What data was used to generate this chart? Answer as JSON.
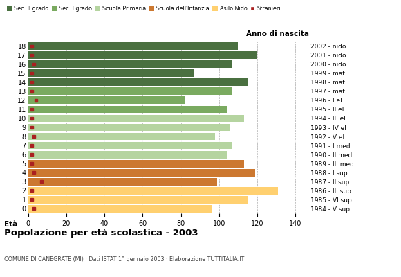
{
  "ages": [
    18,
    17,
    16,
    15,
    14,
    13,
    12,
    11,
    10,
    9,
    8,
    7,
    6,
    5,
    4,
    3,
    2,
    1,
    0
  ],
  "years": [
    "1984 - V sup",
    "1985 - VI sup",
    "1986 - III sup",
    "1987 - II sup",
    "1988 - I sup",
    "1989 - III med",
    "1990 - II med",
    "1991 - I med",
    "1992 - V el",
    "1993 - IV el",
    "1994 - III el",
    "1995 - II el",
    "1996 - I el",
    "1997 - mat",
    "1998 - mat",
    "1999 - mat",
    "2000 - nido",
    "2001 - nido",
    "2002 - nido"
  ],
  "values": [
    110,
    120,
    107,
    87,
    115,
    107,
    82,
    104,
    113,
    106,
    98,
    107,
    104,
    113,
    119,
    99,
    131,
    115,
    96
  ],
  "stranieri": [
    2,
    2,
    3,
    2,
    2,
    2,
    4,
    2,
    2,
    2,
    3,
    2,
    2,
    2,
    3,
    7,
    2,
    2,
    3
  ],
  "bar_colors": {
    "sec2": "#4a7040",
    "sec1": "#7aaa60",
    "primaria": "#b5d4a0",
    "infanzia": "#cc7830",
    "nido": "#ffd070",
    "stranieri": "#aa2020"
  },
  "age_colors": {
    "18": "#4a7040",
    "17": "#4a7040",
    "16": "#4a7040",
    "15": "#4a7040",
    "14": "#4a7040",
    "13": "#7aaa60",
    "12": "#7aaa60",
    "11": "#7aaa60",
    "10": "#b5d4a0",
    "9": "#b5d4a0",
    "8": "#b5d4a0",
    "7": "#b5d4a0",
    "6": "#b5d4a0",
    "5": "#cc7830",
    "4": "#cc7830",
    "3": "#cc7830",
    "2": "#ffd070",
    "1": "#ffd070",
    "0": "#ffd070"
  },
  "legend_labels": [
    "Sec. II grado",
    "Sec. I grado",
    "Scuola Primaria",
    "Scuola dell'Infanzia",
    "Asilo Nido",
    "Stranieri"
  ],
  "legend_colors": [
    "#4a7040",
    "#7aaa60",
    "#b5d4a0",
    "#cc7830",
    "#ffd070",
    "#aa2020"
  ],
  "title": "Popolazione per età scolastica - 2003",
  "subtitle": "COMUNE DI CANEGRATE (MI) · Dati ISTAT 1° gennaio 2003 · Elaborazione TUTTITALIA.IT",
  "xlabel_eta": "Età",
  "xlabel_anno": "Anno di nascita",
  "xlim": [
    0,
    147
  ],
  "xticks": [
    0,
    20,
    40,
    60,
    80,
    100,
    120,
    140
  ],
  "background_color": "#ffffff",
  "grid_color": "#aaaaaa"
}
